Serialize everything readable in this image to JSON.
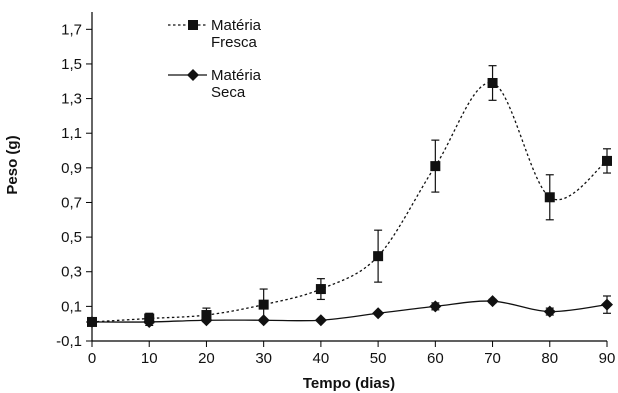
{
  "chart_data": {
    "type": "line",
    "xlabel": "Tempo (dias)",
    "ylabel": "Peso (g)",
    "xlim": [
      0,
      90
    ],
    "ylim": [
      -0.1,
      1.8
    ],
    "x_ticks": [
      "0",
      "10",
      "20",
      "30",
      "40",
      "50",
      "60",
      "70",
      "80",
      "90"
    ],
    "y_ticks": [
      "-0,1",
      "0,1",
      "0,3",
      "0,5",
      "0,7",
      "0,9",
      "1,1",
      "1,3",
      "1,5",
      "1,7"
    ],
    "grid": false,
    "legend_position": "top-left",
    "x": [
      0,
      10,
      20,
      30,
      40,
      50,
      60,
      70,
      80,
      90
    ],
    "series": [
      {
        "name": "Matéria Fresca",
        "name_lines": [
          "Matéria",
          "Fresca"
        ],
        "marker": "square",
        "line_style": "dotted",
        "values": [
          0.01,
          0.03,
          0.05,
          0.11,
          0.2,
          0.39,
          0.91,
          1.39,
          0.73,
          0.94
        ],
        "error": [
          0.01,
          0.03,
          0.04,
          0.09,
          0.06,
          0.15,
          0.15,
          0.1,
          0.13,
          0.07
        ]
      },
      {
        "name": "Matéria Seca",
        "name_lines": [
          "Matéria",
          "Seca"
        ],
        "marker": "diamond",
        "line_style": "solid",
        "values": [
          0.01,
          0.01,
          0.02,
          0.02,
          0.02,
          0.06,
          0.1,
          0.13,
          0.07,
          0.11
        ],
        "error": [
          0.0,
          0.02,
          0.0,
          0.0,
          0.0,
          0.0,
          0.02,
          0.01,
          0.02,
          0.05
        ]
      }
    ]
  }
}
